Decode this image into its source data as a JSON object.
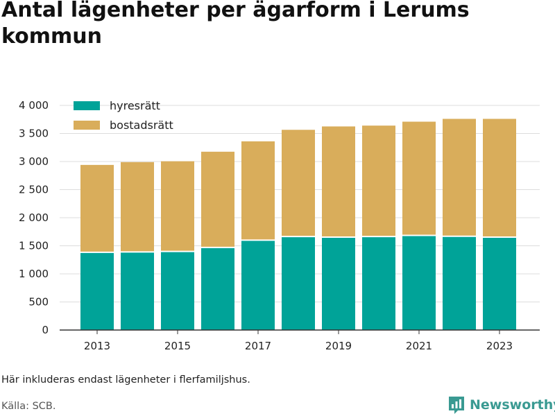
{
  "title": "Antal lägenheter per ägarform i Lerums kommun",
  "note": "Här inkluderas endast lägenheter i flerfamiljshus.",
  "source": "Källa: SCB.",
  "brand": {
    "name": "Newsworthy",
    "icon": "newsworthy-logo-icon",
    "color": "#3a9a92"
  },
  "chart_data": {
    "type": "bar",
    "stacked": true,
    "categories": [
      "2013",
      "2014",
      "2015",
      "2016",
      "2017",
      "2018",
      "2019",
      "2020",
      "2021",
      "2022",
      "2023"
    ],
    "x_tick_labels": [
      "2013",
      "2015",
      "2017",
      "2019",
      "2021",
      "2023"
    ],
    "series": [
      {
        "name": "hyresrätt",
        "color": "#00a398",
        "values": [
          1385,
          1390,
          1400,
          1470,
          1600,
          1665,
          1655,
          1665,
          1685,
          1670,
          1655
        ]
      },
      {
        "name": "bostadsrätt",
        "color": "#d9ad5b",
        "values": [
          1555,
          1600,
          1605,
          1705,
          1760,
          1900,
          1970,
          1975,
          2025,
          2090,
          2105
        ]
      }
    ],
    "ylim": [
      0,
      4000
    ],
    "y_ticks": [
      0,
      500,
      1000,
      1500,
      2000,
      2500,
      3000,
      3500,
      4000
    ],
    "y_tick_labels": [
      "0",
      "500",
      "1 000",
      "1 500",
      "2 000",
      "2 500",
      "3 000",
      "3 500",
      "4 000"
    ],
    "xlabel": "",
    "ylabel": "",
    "grid": true,
    "legend_position": "top-left"
  }
}
